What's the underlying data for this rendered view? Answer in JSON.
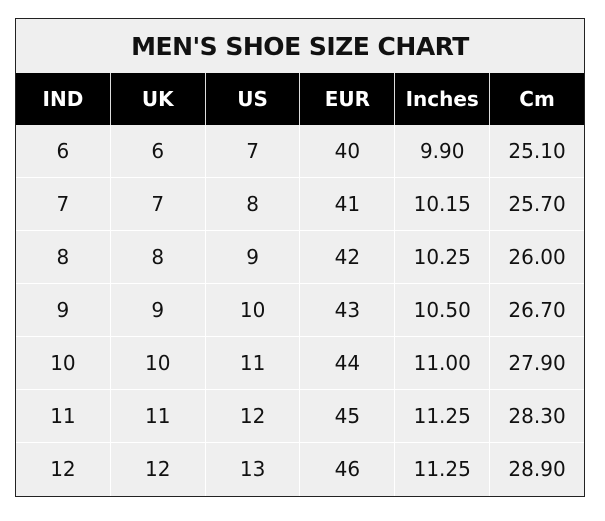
{
  "title": "MEN'S SHOE SIZE CHART",
  "columns": [
    "IND",
    "UK",
    "US",
    "EUR",
    "Inches",
    "Cm"
  ],
  "rows": [
    [
      "6",
      "6",
      "7",
      "40",
      "9.90",
      "25.10"
    ],
    [
      "7",
      "7",
      "8",
      "41",
      "10.15",
      "25.70"
    ],
    [
      "8",
      "8",
      "9",
      "42",
      "10.25",
      "26.00"
    ],
    [
      "9",
      "9",
      "10",
      "43",
      "10.50",
      "26.70"
    ],
    [
      "10",
      "10",
      "11",
      "44",
      "11.00",
      "27.90"
    ],
    [
      "11",
      "11",
      "12",
      "45",
      "11.25",
      "28.30"
    ],
    [
      "12",
      "12",
      "13",
      "46",
      "11.25",
      "28.90"
    ]
  ],
  "colors": {
    "header_bg": "#000000",
    "header_text": "#ffffff",
    "cell_bg": "#efefef",
    "grid": "#ffffff"
  }
}
